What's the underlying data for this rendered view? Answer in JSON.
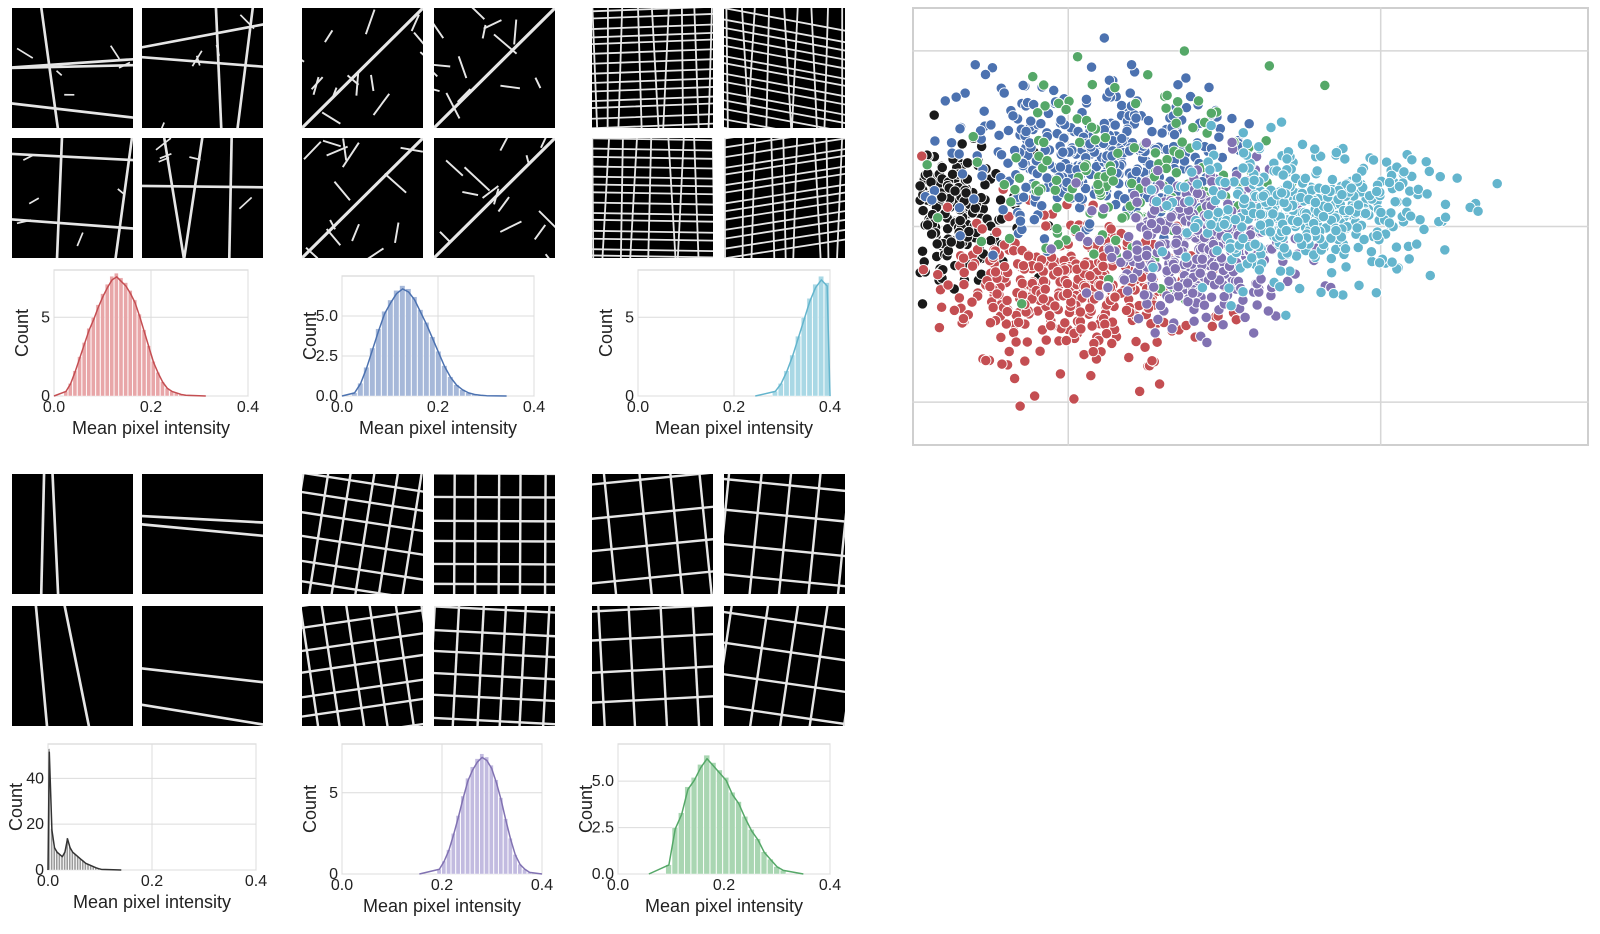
{
  "clusters": [
    {
      "id": "cluster-red",
      "color": "#c44e52",
      "fill": "#e8a6a8",
      "chart_data": {
        "type": "bar",
        "xlabel": "Mean pixel intensity",
        "ylabel": "Count",
        "xlim": [
          0,
          0.4
        ],
        "ylim": [
          0,
          8
        ],
        "xticks": [
          "0.0",
          "0.2",
          "0.4"
        ],
        "yticks": [
          "0",
          "5"
        ],
        "bin_start": 0.02,
        "bin_width": 0.0095,
        "values": [
          0.3,
          0.8,
          1.6,
          2.5,
          3.4,
          4.3,
          5.0,
          5.8,
          6.5,
          7.1,
          7.6,
          7.8,
          7.5,
          7.2,
          6.7,
          6.1,
          5.2,
          4.2,
          3.2,
          2.2,
          1.5,
          0.9,
          0.5,
          0.3,
          0.2,
          0.1,
          0.05
        ]
      }
    },
    {
      "id": "cluster-blue",
      "color": "#4c72b0",
      "fill": "#a6b8d9",
      "chart_data": {
        "type": "bar",
        "xlabel": "Mean pixel intensity",
        "ylabel": "Count",
        "xlim": [
          0,
          0.4
        ],
        "ylim": [
          0,
          7.5
        ],
        "xticks": [
          "0.0",
          "0.2",
          "0.4"
        ],
        "yticks": [
          "0.0",
          "2.5",
          "5.0"
        ],
        "bin_start": 0.02,
        "bin_width": 0.0125,
        "values": [
          0.2,
          0.8,
          1.8,
          3.0,
          4.2,
          5.3,
          6.0,
          6.6,
          6.9,
          6.7,
          6.2,
          5.4,
          4.6,
          3.7,
          2.8,
          1.9,
          1.2,
          0.7,
          0.4,
          0.2,
          0.1,
          0.05,
          0.02
        ]
      }
    },
    {
      "id": "cluster-cyan",
      "color": "#64b5cd",
      "fill": "#a9d8e5",
      "chart_data": {
        "type": "bar",
        "xlabel": "Mean pixel intensity",
        "ylabel": "Count",
        "xlim": [
          0,
          0.4
        ],
        "ylim": [
          0,
          8
        ],
        "xticks": [
          "0.0",
          "0.2",
          "0.4"
        ],
        "yticks": [
          "0",
          "5"
        ],
        "bin_start": 0.28,
        "bin_width": 0.012,
        "values": [
          0.3,
          0.8,
          1.6,
          2.6,
          3.8,
          5.0,
          6.2,
          7.1,
          7.6,
          7.2
        ]
      }
    },
    {
      "id": "cluster-black",
      "color": "#333333",
      "fill": "#9a9a9a",
      "chart_data": {
        "type": "bar",
        "xlabel": "Mean pixel intensity",
        "ylabel": "Count",
        "xlim": [
          0,
          0.4
        ],
        "ylim": [
          0,
          55
        ],
        "xticks": [
          "0.0",
          "0.2",
          "0.4"
        ],
        "yticks": [
          "0",
          "20",
          "40"
        ],
        "bin_start": 0.0,
        "bin_width": 0.005,
        "values": [
          53,
          18,
          10,
          8,
          7,
          6,
          8,
          14,
          10,
          8,
          7,
          6,
          5,
          4,
          3,
          2.5,
          2,
          1.5,
          1,
          0.6,
          0.3
        ]
      }
    },
    {
      "id": "cluster-purple",
      "color": "#8172b2",
      "fill": "#c2bbe0",
      "chart_data": {
        "type": "bar",
        "xlabel": "Mean pixel intensity",
        "ylabel": "Count",
        "xlim": [
          0,
          0.4
        ],
        "ylim": [
          0,
          8
        ],
        "xticks": [
          "0.0",
          "0.2",
          "0.4"
        ],
        "yticks": [
          "0",
          "5"
        ],
        "bin_start": 0.19,
        "bin_width": 0.0095,
        "values": [
          0.3,
          0.8,
          1.5,
          2.5,
          3.6,
          4.8,
          5.9,
          6.6,
          7.1,
          7.4,
          7.2,
          6.7,
          5.8,
          4.7,
          3.4,
          2.2,
          1.2,
          0.6,
          0.3,
          0.1
        ]
      }
    },
    {
      "id": "cluster-green",
      "color": "#55a868",
      "fill": "#a9d6b2",
      "chart_data": {
        "type": "bar",
        "xlabel": "Mean pixel intensity",
        "ylabel": "Count",
        "xlim": [
          0,
          0.4
        ],
        "ylim": [
          0,
          7
        ],
        "xticks": [
          "0.0",
          "0.2",
          "0.4"
        ],
        "yticks": [
          "0.0",
          "2.5",
          "5.0"
        ],
        "bin_start": 0.09,
        "bin_width": 0.012,
        "values": [
          0.5,
          2.5,
          3.3,
          4.7,
          5.2,
          5.9,
          6.4,
          6.0,
          5.6,
          5.2,
          4.4,
          3.9,
          3.1,
          2.4,
          1.9,
          1.2,
          0.8,
          0.4,
          0.2
        ]
      }
    }
  ],
  "scatter": {
    "chart_data": {
      "type": "scatter",
      "xlim": [
        -3,
        10
      ],
      "ylim": [
        -5,
        5
      ],
      "grid": true,
      "series": [
        {
          "color": "#1a1a1a",
          "center": [
            -2.3,
            0.3
          ],
          "spread": [
            0.55,
            0.75
          ],
          "count": 220
        },
        {
          "color": "#c44e52",
          "center": [
            0.1,
            -1.4
          ],
          "spread": [
            1.25,
            0.85
          ],
          "count": 430
        },
        {
          "color": "#4c72b0",
          "center": [
            0.6,
            1.6
          ],
          "spread": [
            1.35,
            0.85
          ],
          "count": 400
        },
        {
          "color": "#55a868",
          "center": [
            1.2,
            1.1
          ],
          "spread": [
            1.6,
            1.1
          ],
          "count": 160
        },
        {
          "color": "#8172b2",
          "center": [
            2.6,
            -0.4
          ],
          "spread": [
            0.9,
            0.85
          ],
          "count": 380
        },
        {
          "color": "#64b5cd",
          "center": [
            4.6,
            0.3
          ],
          "spread": [
            1.25,
            0.7
          ],
          "count": 460
        }
      ]
    }
  }
}
